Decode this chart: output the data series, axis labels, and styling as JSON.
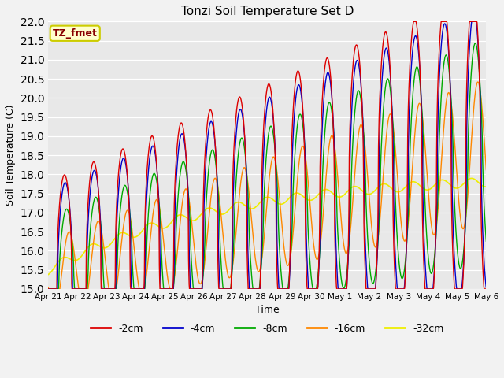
{
  "title": "Tonzi Soil Temperature Set D",
  "xlabel": "Time",
  "ylabel": "Soil Temperature (C)",
  "ylim": [
    15.0,
    22.0
  ],
  "yticks": [
    15.0,
    15.5,
    16.0,
    16.5,
    17.0,
    17.5,
    18.0,
    18.5,
    19.0,
    19.5,
    20.0,
    20.5,
    21.0,
    21.5,
    22.0
  ],
  "bg_color": "#e8e8e8",
  "fig_bg": "#f2f2f2",
  "series_colors": {
    "-2cm": "#dd0000",
    "-4cm": "#0000cc",
    "-8cm": "#00aa00",
    "-16cm": "#ff8800",
    "-32cm": "#eeee00"
  },
  "legend_label": "TZ_fmet",
  "legend_fg": "#880000",
  "legend_bg": "#ffffcc",
  "legend_edge": "#cccc00",
  "n_days": 15,
  "points_per_day": 96,
  "figsize": [
    6.4,
    4.8
  ],
  "dpi": 100
}
